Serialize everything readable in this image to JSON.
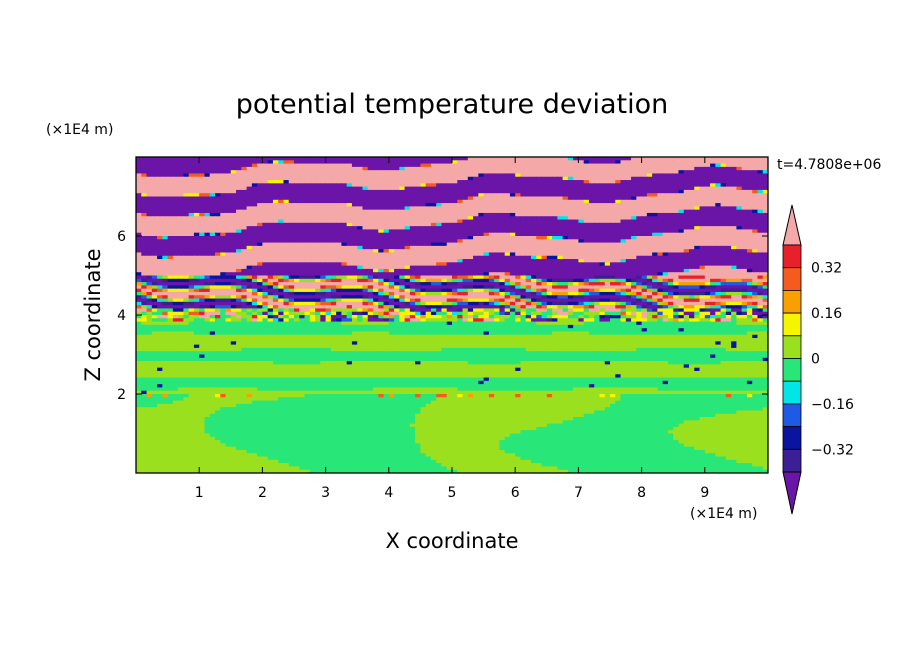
{
  "chart_data": {
    "type": "heatmap",
    "title": "potential temperature deviation",
    "xlabel": "X coordinate",
    "ylabel": "Z coordinate",
    "x_unit": "(×1E4 m)",
    "y_unit": "(×1E4 m)",
    "time_label": "t=4.7808e+06",
    "xlim": [
      0,
      10
    ],
    "ylim": [
      0,
      8
    ],
    "x_ticks": [
      "1",
      "2",
      "3",
      "4",
      "5",
      "6",
      "7",
      "8",
      "9"
    ],
    "y_ticks": [
      "2",
      "4",
      "6"
    ],
    "colorbar": {
      "labels": [
        "0.32",
        "0.16",
        "0",
        "-0.16",
        "-0.32"
      ],
      "bands_top_to_bottom": [
        {
          "range": "> 0.4",
          "color": "#f4a8a8"
        },
        {
          "range": "0.32 – 0.4",
          "color": "#e8202a"
        },
        {
          "range": "0.24 – 0.32",
          "color": "#f55a1e"
        },
        {
          "range": "0.16 – 0.24",
          "color": "#f7a000"
        },
        {
          "range": "0.08 – 0.16",
          "color": "#f5f500"
        },
        {
          "range": "0 – 0.08",
          "color": "#9be01e"
        },
        {
          "range": "-0.08 – 0",
          "color": "#28e678"
        },
        {
          "range": "-0.16 – -0.08",
          "color": "#00e6e6"
        },
        {
          "range": "-0.24 – -0.16",
          "color": "#1e5ae6"
        },
        {
          "range": "-0.32 – -0.24",
          "color": "#0a14a0"
        },
        {
          "range": "-0.4 – -0.32",
          "color": "#3c1e96"
        },
        {
          "range": "< -0.4",
          "color": "#6a14a8"
        }
      ]
    },
    "layers_bottom_to_top": [
      {
        "z_range": [
          0,
          2.0
        ],
        "dominant": "mixed -0.08–0 and 0–0.08 (large cells)"
      },
      {
        "z_range": [
          2.0,
          3.8
        ],
        "dominant": "near-zero horizontal bands (green / light green)"
      },
      {
        "z_range": [
          3.8,
          5.0
        ],
        "dominant": "strongly mixed, all levels"
      },
      {
        "z_range": [
          5.0,
          8.0
        ],
        "dominant": "alternating bands > 0.4 and < -0.4"
      }
    ]
  }
}
